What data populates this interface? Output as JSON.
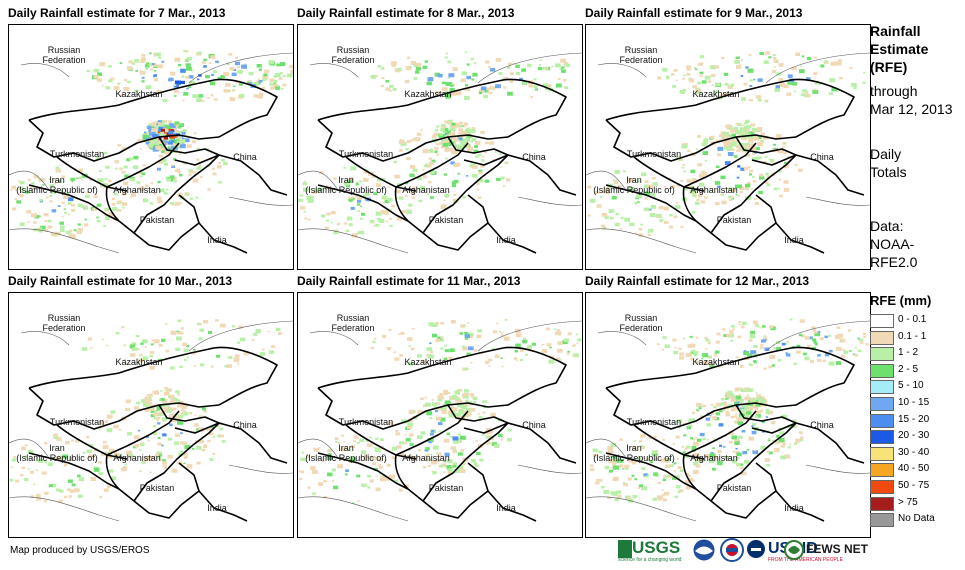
{
  "panels": [
    {
      "title": "Daily Rainfall estimate for 7 Mar., 2013",
      "intensity": [
        0.55,
        0.3,
        0.35,
        0.9
      ]
    },
    {
      "title": "Daily Rainfall estimate for 8 Mar., 2013",
      "intensity": [
        0.35,
        0.3,
        0.25,
        0.3
      ]
    },
    {
      "title": "Daily Rainfall estimate for 9 Mar., 2013",
      "intensity": [
        0.35,
        0.4,
        0.2,
        0.2
      ]
    },
    {
      "title": "Daily Rainfall estimate for 10 Mar., 2013",
      "intensity": [
        0.2,
        0.35,
        0.15,
        0.1
      ]
    },
    {
      "title": "Daily Rainfall estimate for 11 Mar., 2013",
      "intensity": [
        0.3,
        0.4,
        0.2,
        0.1
      ]
    },
    {
      "title": "Daily Rainfall estimate for 12 Mar., 2013",
      "intensity": [
        0.45,
        0.5,
        0.3,
        0.3
      ]
    }
  ],
  "map_labels": {
    "russia": "Russian\nFederation",
    "kazakhstan": "Kazakhstan",
    "turkmenistan": "Turkmenistan",
    "iran": "Iran\n(Islamic Republic of)",
    "afghanistan": "Afghanistan",
    "pakistan": "Pakistan",
    "china": "China",
    "india": "India"
  },
  "side": {
    "title_line1": "Rainfall",
    "title_line2": "Estimate",
    "title_line3": "(RFE)",
    "through": "through",
    "date": "Mar 12, 2013",
    "totals_line1": "Daily",
    "totals_line2": "Totals",
    "data_line1": "Data:",
    "data_line2": "NOAA-",
    "data_line3": "RFE2.0"
  },
  "legend": {
    "title": "RFE (mm)",
    "items": [
      {
        "label": "0 - 0.1",
        "color": "#ffffff"
      },
      {
        "label": "0.1 - 1",
        "color": "#f0d9b5"
      },
      {
        "label": "1 - 2",
        "color": "#b8f0a8"
      },
      {
        "label": "2 - 5",
        "color": "#6ee06e"
      },
      {
        "label": "5 - 10",
        "color": "#a6ecf6"
      },
      {
        "label": "10 - 15",
        "color": "#6fa8f0"
      },
      {
        "label": "15 - 20",
        "color": "#4c8ef0"
      },
      {
        "label": "20 - 30",
        "color": "#1a5ae6"
      },
      {
        "label": "30 - 40",
        "color": "#f8e27a"
      },
      {
        "label": "40 - 50",
        "color": "#f5a623"
      },
      {
        "label": "50 - 75",
        "color": "#f04a10"
      },
      {
        "label": "> 75",
        "color": "#a51d1d"
      },
      {
        "label": "No Data",
        "color": "#999999"
      }
    ]
  },
  "credit": "Map produced by USGS/EROS",
  "logos": {
    "usgs": "USGS",
    "usgs_tagline": "science for a changing world",
    "usaid": "USAID",
    "usaid_tagline": "FROM THE AMERICAN PEOPLE",
    "fews": "FEWS NET"
  }
}
